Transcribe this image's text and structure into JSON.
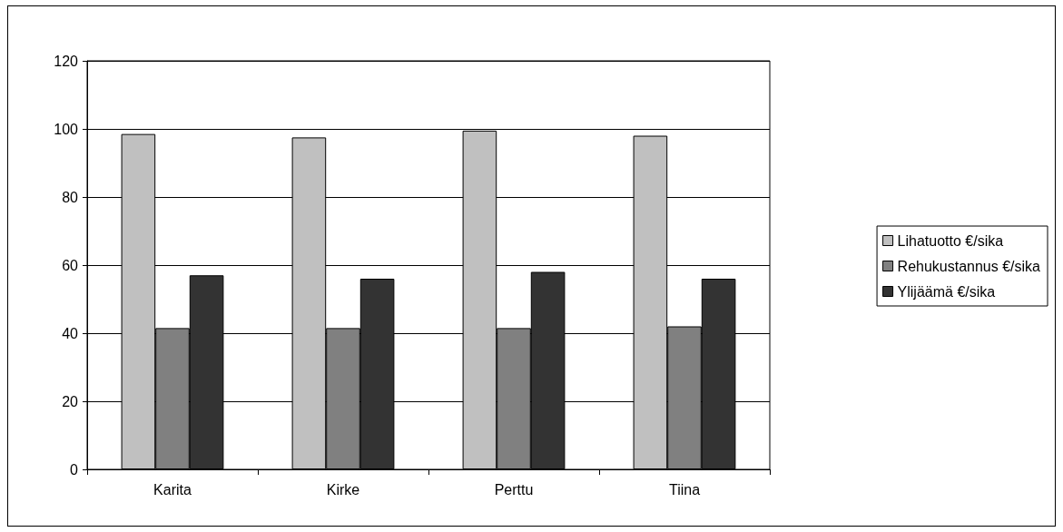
{
  "chart_data": {
    "type": "bar",
    "categories": [
      "Karita",
      "Kirke",
      "Perttu",
      "Tiina"
    ],
    "series": [
      {
        "name": "Lihatuotto €/sika",
        "color": "#c0c0c0",
        "values": [
          98.5,
          97.5,
          99.5,
          98
        ]
      },
      {
        "name": "Rehukustannus €/sika",
        "color": "#808080",
        "values": [
          41.5,
          41.5,
          41.5,
          42
        ]
      },
      {
        "name": "Ylijäämä €/sika",
        "color": "#333333",
        "values": [
          57,
          56,
          58,
          56
        ]
      }
    ],
    "ylim": [
      0,
      120
    ],
    "yticks": [
      0,
      20,
      40,
      60,
      80,
      100,
      120
    ],
    "grid": "y",
    "legend": "right"
  }
}
